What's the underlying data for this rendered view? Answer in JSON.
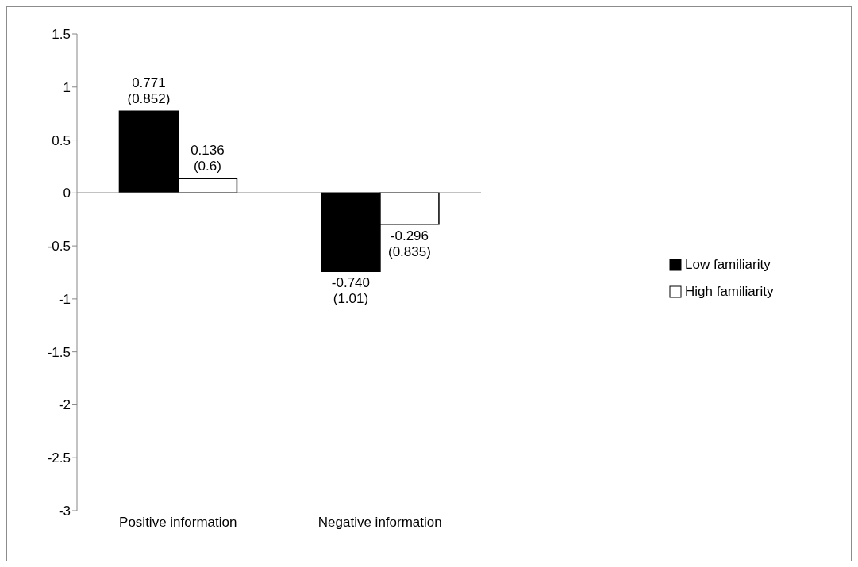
{
  "chart_data": {
    "type": "bar",
    "categories": [
      "Positive information",
      "Negative information"
    ],
    "series": [
      {
        "name": "Low familiarity",
        "color": "#000000",
        "values": [
          0.771,
          -0.74
        ],
        "value_labels": [
          "0.771\n(0.852)",
          "-0.740\n(1.01)"
        ]
      },
      {
        "name": "High familiarity",
        "color": "#ffffff",
        "values": [
          0.136,
          -0.296
        ],
        "value_labels": [
          "0.136\n(0.6)",
          "-0.296\n(0.835)"
        ]
      }
    ],
    "ylim": [
      -3,
      1.5
    ],
    "yticks": [
      -3,
      -2.5,
      -2,
      -1.5,
      -1,
      -0.5,
      0,
      0.5,
      1,
      1.5
    ],
    "legend": "right"
  }
}
